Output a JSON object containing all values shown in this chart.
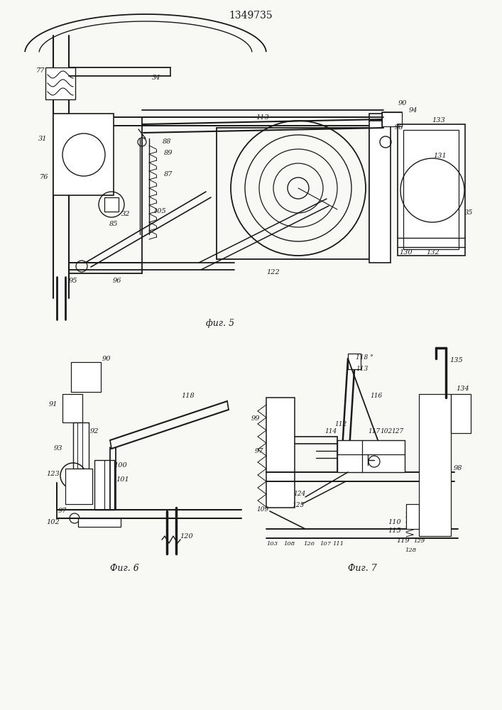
{
  "title": "1349735",
  "title_fontsize": 10,
  "background_color": "#f8f8f5",
  "line_color": "#1a1a1a",
  "fig5_caption": "фиг. 5",
  "fig6_caption": "Фиг. 6",
  "fig7_caption": "Фиг. 7",
  "fig_width": 7.07,
  "fig_height": 10.0,
  "dpi": 100
}
